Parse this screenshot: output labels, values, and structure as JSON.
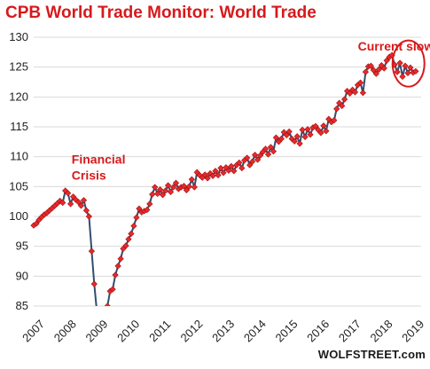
{
  "title": "CPB World Trade Monitor: World Trade",
  "credit": "WOLFSTREET.com",
  "colors": {
    "line": "#2f4f6f",
    "marker": "#e8292c",
    "annotation": "#d7191c",
    "grid": "#d9d9d9"
  },
  "chart_data": {
    "type": "line",
    "title": "CPB World Trade Monitor: World Trade",
    "xlabel": "",
    "ylabel": "",
    "ylim": [
      85,
      130
    ],
    "xlim": [
      2007.0,
      2019.25
    ],
    "yticks": [
      85,
      90,
      95,
      100,
      105,
      110,
      115,
      120,
      125,
      130
    ],
    "xticks": [
      "2007",
      "2008",
      "2009",
      "2010",
      "2011",
      "2012",
      "2013",
      "2014",
      "2015",
      "2016",
      "2017",
      "2018",
      "2019"
    ],
    "grid": "horizontal",
    "annotations": [
      {
        "lines": [
          "Financial",
          "Crisis"
        ],
        "x": 2008.2,
        "y": 108.8
      },
      {
        "lines": [
          "Current slow-dwon"
        ],
        "x": 2017.25,
        "y": 127.8
      }
    ],
    "highlight": {
      "type": "ellipse",
      "x": 2018.85,
      "y": 125.6
    },
    "series": [
      {
        "start": 2007.0,
        "step": 0.0833,
        "values": [
          98.5,
          98.8,
          99.4,
          99.9,
          100.3,
          100.6,
          101.0,
          101.4,
          101.8,
          102.2,
          102.6,
          102.3,
          104.3,
          103.9,
          102.1,
          103.3,
          102.8,
          102.4,
          101.8,
          102.7,
          101.0,
          100.0,
          94.2,
          88.7,
          84.0,
          80.5,
          82.0,
          83.5,
          85.0,
          87.5,
          87.8,
          90.2,
          91.7,
          92.9,
          94.6,
          95.1,
          96.2,
          97.1,
          98.4,
          99.8,
          101.3,
          100.7,
          100.9,
          101.1,
          102.1,
          103.7,
          104.9,
          103.8,
          104.5,
          103.6,
          104.3,
          105.2,
          104.1,
          104.9,
          105.6,
          104.6,
          104.9,
          105.1,
          104.4,
          105.0,
          106.2,
          104.9,
          107.4,
          106.9,
          106.5,
          107.0,
          106.4,
          107.2,
          106.8,
          107.6,
          106.9,
          108.1,
          107.3,
          108.2,
          107.7,
          108.4,
          107.6,
          108.6,
          109.0,
          108.1,
          109.4,
          109.8,
          108.6,
          109.2,
          110.3,
          109.5,
          110.2,
          110.8,
          111.3,
          110.4,
          111.6,
          110.9,
          113.2,
          112.5,
          113.0,
          114.1,
          113.6,
          114.2,
          113.0,
          112.6,
          113.4,
          112.2,
          114.5,
          113.3,
          114.6,
          113.7,
          114.9,
          115.1,
          114.5,
          114.0,
          115.2,
          114.3,
          116.3,
          115.8,
          116.1,
          118.0,
          119.0,
          118.5,
          119.6,
          121.0,
          120.6,
          121.2,
          120.8,
          122.0,
          122.4,
          120.7,
          124.2,
          125.1,
          125.2,
          124.5,
          123.9,
          124.6,
          125.3,
          124.8,
          126.1,
          126.7,
          127.0,
          125.4,
          124.2,
          125.7,
          123.4,
          125.2,
          124.0,
          124.9,
          124.1,
          124.3
        ]
      }
    ]
  }
}
